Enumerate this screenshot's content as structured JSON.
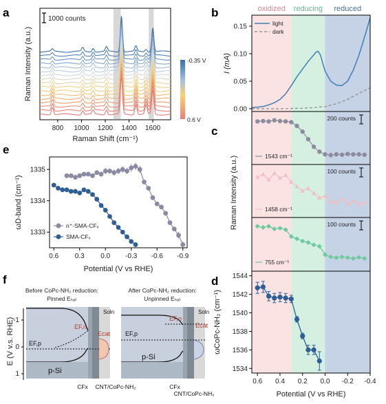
{
  "panels": {
    "a": "a",
    "b": "b",
    "c": "c",
    "d": "d",
    "e": "e",
    "f": "f"
  },
  "chart_data": [
    {
      "id": "a",
      "type": "line",
      "xlabel": "Raman Shift (cm⁻¹)",
      "ylabel": "Raman Intensity (a.u.)",
      "xlim": [
        650,
        1750
      ],
      "xticks": [
        800,
        1000,
        1200,
        1400,
        1600
      ],
      "scale_bar": "1000 counts",
      "colorbar": {
        "top": "-0.35 V",
        "bottom": "0.6 V"
      },
      "n_spectra": 17,
      "peaks": [
        {
          "center": 755,
          "height": 0.5
        },
        {
          "center": 1010,
          "height": 0.25
        },
        {
          "center": 1098,
          "height": 0.25
        },
        {
          "center": 1210,
          "height": 0.3
        },
        {
          "center": 1336,
          "height": 2.4
        },
        {
          "center": 1458,
          "height": 0.7
        },
        {
          "center": 1543,
          "height": 0.6
        },
        {
          "center": 1600,
          "height": 1.6
        }
      ],
      "highlight_bands": [
        [
          1268,
          1330
        ],
        [
          1565,
          1608
        ]
      ]
    },
    {
      "id": "b",
      "type": "line",
      "ylabel": "I (mA)",
      "xlim": [
        0.65,
        -0.4
      ],
      "ylim": [
        -0.005,
        0.17
      ],
      "yticks": [
        0.0,
        0.05,
        0.1,
        0.15
      ],
      "regions": [
        {
          "label": "oxidized",
          "from": 0.65,
          "to": 0.3,
          "color": "#fbe3e4"
        },
        {
          "label": "reducing",
          "from": 0.3,
          "to": 0.0,
          "color": "#d5f0e1"
        },
        {
          "label": "reduced",
          "from": 0.0,
          "to": -0.4,
          "color": "#c6d3e6"
        }
      ],
      "legend": [
        "light",
        "dark"
      ],
      "series": [
        {
          "name": "light",
          "x": [
            0.65,
            0.6,
            0.55,
            0.5,
            0.45,
            0.4,
            0.35,
            0.3,
            0.25,
            0.2,
            0.15,
            0.1,
            0.08,
            0.06,
            0.04,
            0.02,
            0.0,
            -0.05,
            -0.1,
            -0.15,
            -0.2,
            -0.25,
            -0.3,
            -0.35,
            -0.4
          ],
          "values": [
            0.002,
            0.003,
            0.004,
            0.007,
            0.011,
            0.017,
            0.027,
            0.042,
            0.058,
            0.072,
            0.086,
            0.098,
            0.103,
            0.104,
            0.097,
            0.082,
            0.068,
            0.05,
            0.043,
            0.042,
            0.05,
            0.07,
            0.097,
            0.13,
            0.165
          ]
        },
        {
          "name": "dark",
          "x": [
            0.65,
            0.4,
            0.2,
            0.1,
            0.0,
            -0.1,
            -0.2,
            -0.3,
            -0.4
          ],
          "values": [
            0.0,
            0.0,
            0.001,
            0.002,
            0.004,
            0.009,
            0.017,
            0.028,
            0.038
          ]
        }
      ]
    },
    {
      "id": "c",
      "type": "line",
      "ylabel": "Raman Intensity (a.u.)",
      "xlim": [
        0.65,
        -0.4
      ],
      "series": [
        {
          "name": "1543 cm⁻¹",
          "scale_bar": "200 counts",
          "color": "#8c8c9e",
          "x": [
            0.6,
            0.55,
            0.5,
            0.45,
            0.4,
            0.35,
            0.3,
            0.25,
            0.2,
            0.15,
            0.1,
            0.05,
            0.0,
            -0.05,
            -0.1,
            -0.15,
            -0.2,
            -0.25,
            -0.3,
            -0.35
          ],
          "values": [
            0.92,
            0.93,
            0.92,
            0.95,
            0.93,
            0.92,
            0.9,
            0.8,
            0.65,
            0.45,
            0.25,
            0.12,
            0.05,
            0.03,
            0.05,
            0.04,
            0.06,
            0.05,
            0.05,
            0.04
          ]
        },
        {
          "name": "1458 cm⁻¹",
          "scale_bar": "100 counts",
          "color": "#f2bfc3",
          "x": [
            0.6,
            0.55,
            0.5,
            0.45,
            0.4,
            0.35,
            0.3,
            0.25,
            0.2,
            0.15,
            0.1,
            0.05,
            0.0,
            -0.05,
            -0.1,
            -0.15,
            -0.2,
            -0.25,
            -0.3,
            -0.35
          ],
          "values": [
            0.85,
            0.92,
            0.78,
            0.95,
            0.82,
            0.9,
            0.72,
            0.6,
            0.48,
            0.55,
            0.42,
            0.3,
            0.35,
            0.2,
            0.18,
            0.28,
            0.15,
            0.22,
            0.12,
            0.18
          ]
        },
        {
          "name": "755 cm⁻¹",
          "scale_bar": "100 counts",
          "color": "#6ec99c",
          "x": [
            0.6,
            0.55,
            0.5,
            0.45,
            0.4,
            0.35,
            0.3,
            0.25,
            0.2,
            0.15,
            0.1,
            0.05,
            0.0,
            -0.05,
            -0.1,
            -0.15,
            -0.2,
            -0.25,
            -0.3,
            -0.35
          ],
          "values": [
            0.95,
            0.92,
            0.95,
            0.88,
            0.9,
            0.86,
            0.68,
            0.62,
            0.56,
            0.52,
            0.46,
            0.42,
            0.2,
            0.14,
            0.12,
            0.14,
            0.12,
            0.1,
            0.13,
            0.1
          ]
        }
      ]
    },
    {
      "id": "d",
      "type": "scatter",
      "xlabel": "Potential (V vs RHE)",
      "ylabel": "ωCoPc-NH₂ (cm⁻¹)",
      "xlim": [
        0.65,
        -0.4
      ],
      "ylim": [
        1533.5,
        1544.5
      ],
      "xticks": [
        0.6,
        0.4,
        0.2,
        0.0,
        -0.2,
        -0.4
      ],
      "xticklabels": [
        "0.6",
        "0.4",
        "0.2",
        "0.0",
        "-0.2",
        "-0.4"
      ],
      "yticks": [
        1534,
        1536,
        1538,
        1540,
        1542,
        1544
      ],
      "x": [
        0.6,
        0.55,
        0.5,
        0.45,
        0.4,
        0.35,
        0.3,
        0.25,
        0.2,
        0.15,
        0.1,
        0.05
      ],
      "values": [
        1542.7,
        1542.8,
        1541.8,
        1541.6,
        1541.7,
        1541.6,
        1541.5,
        1539.3,
        1537.5,
        1536.0,
        1536.0,
        1534.8
      ],
      "errors": [
        0.6,
        0.6,
        0.5,
        0.5,
        0.5,
        0.5,
        0.4,
        0.3,
        0.3,
        0.5,
        0.5,
        1.0
      ]
    },
    {
      "id": "e",
      "type": "scatter",
      "xlabel": "Potential (V vs RHE)",
      "ylabel": "ωD-band (cm⁻¹)",
      "xlim": [
        0.65,
        -0.95
      ],
      "ylim": [
        1332.5,
        1335.4
      ],
      "xticks": [
        0.6,
        0.3,
        0.0,
        -0.3,
        -0.6,
        -0.9
      ],
      "xticklabels": [
        "0.6",
        "0.3",
        "0.0",
        "-0.3",
        "-0.6",
        "-0.9"
      ],
      "yticks": [
        1333,
        1334,
        1335
      ],
      "legend": [
        "n⁺-SMA-CFₓ",
        "SMA-CFₓ"
      ],
      "series": [
        {
          "name": "n⁺-SMA-CFₓ",
          "color": "#8a8aa2",
          "x": [
            0.45,
            0.4,
            0.35,
            0.3,
            0.25,
            0.2,
            0.15,
            0.1,
            0.05,
            0.0,
            -0.05,
            -0.1,
            -0.15,
            -0.2,
            -0.25,
            -0.3,
            -0.35,
            -0.4,
            -0.45,
            -0.5,
            -0.55,
            -0.6,
            -0.65,
            -0.7,
            -0.75,
            -0.8,
            -0.85,
            -0.9
          ],
          "values": [
            1334.8,
            1334.8,
            1334.75,
            1334.8,
            1334.85,
            1334.85,
            1334.8,
            1334.9,
            1334.85,
            1334.95,
            1334.95,
            1334.9,
            1334.95,
            1335.0,
            1334.95,
            1335.05,
            1335.1,
            1335.0,
            1334.6,
            1334.4,
            1334.1,
            1333.9,
            1333.8,
            1333.6,
            1333.3,
            1333.1,
            1332.9,
            1332.6
          ],
          "errors": [
            0,
            0,
            0,
            0,
            0,
            0,
            0,
            0,
            0.08,
            0.1,
            0.08,
            0.1,
            0.1,
            0.1,
            0.1,
            0.12,
            0.12,
            0.12,
            0,
            0,
            0,
            0,
            0,
            0,
            0,
            0,
            0.1,
            0.1
          ]
        },
        {
          "name": "SMA-CFₓ",
          "color": "#2e5e93",
          "x": [
            0.6,
            0.55,
            0.5,
            0.45,
            0.4,
            0.35,
            0.3,
            0.25,
            0.2,
            0.15,
            0.1,
            0.05,
            0.0,
            -0.05,
            -0.1,
            -0.15,
            -0.2,
            -0.25,
            -0.3,
            -0.35
          ],
          "values": [
            1334.5,
            1334.4,
            1334.35,
            1334.35,
            1334.3,
            1334.3,
            1334.25,
            1334.35,
            1334.3,
            1334.2,
            1334.05,
            1333.85,
            1333.7,
            1333.5,
            1333.3,
            1333.15,
            1333.0,
            1332.85,
            1332.7,
            1332.6
          ]
        }
      ]
    },
    {
      "id": "f",
      "type": "diagram",
      "ylabel": "E (V v.s. RHE)",
      "yticks": [
        -1,
        0,
        1
      ],
      "yticklabels": [
        "-1",
        "0",
        "1"
      ],
      "left_title": [
        "Before CoPc-NH₂ reduction:",
        "Pinned Eₕₐₜ"
      ],
      "right_title": [
        "After CoPc-NH₂ reduction:",
        "Unpinned Eₕₐₜ"
      ],
      "labels": {
        "soln": "Soln",
        "efn": "EF,n",
        "efp": "EF,p",
        "ecat": "Ecat",
        "psi": "p-Si",
        "cfx": "CFx",
        "cnt": "CNT/CoPc-NH₂"
      }
    }
  ]
}
